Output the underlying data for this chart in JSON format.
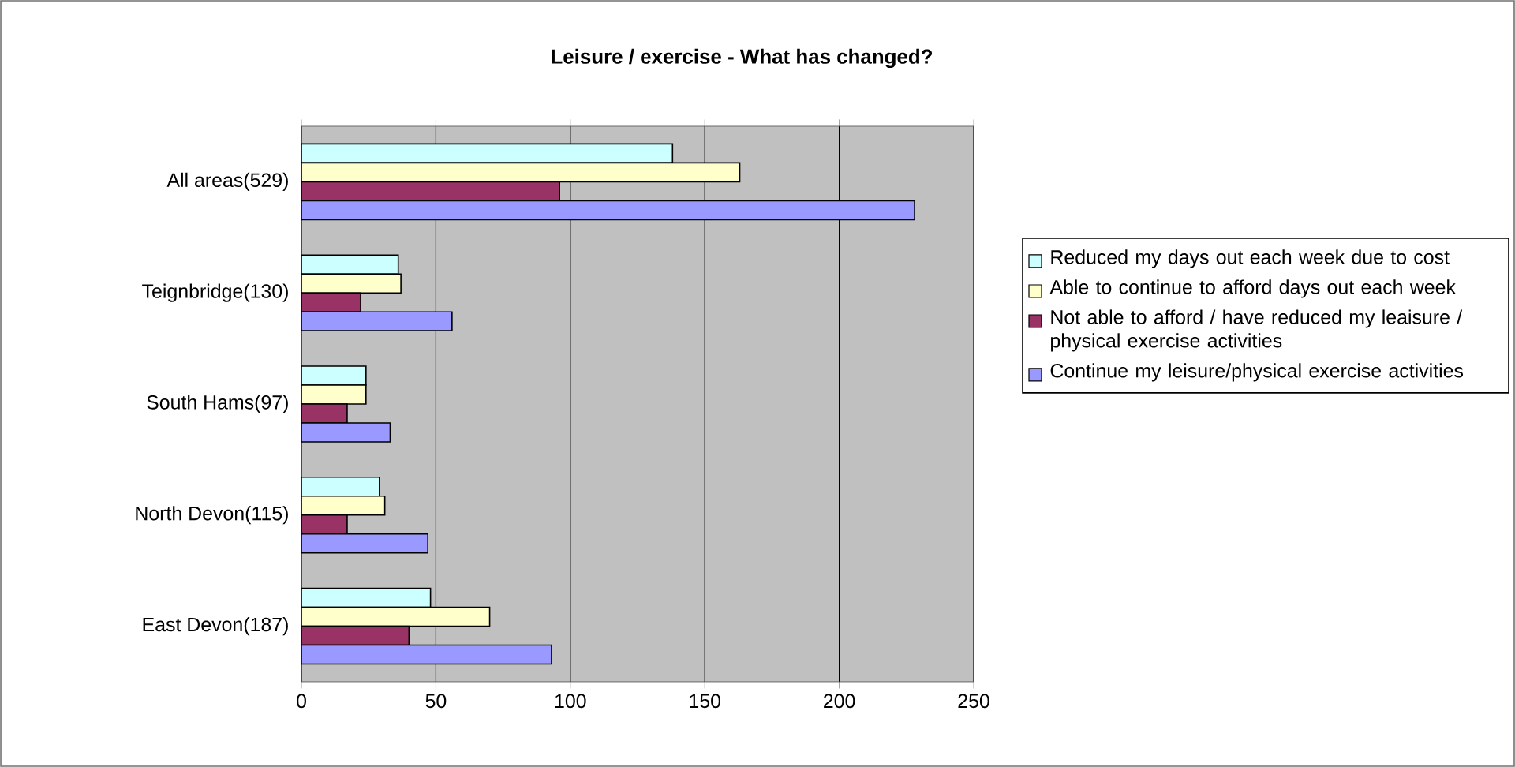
{
  "chart_data": {
    "type": "bar",
    "orientation": "horizontal",
    "title": "Leisure  / exercise - What has changed?",
    "categories": [
      "All areas(529)",
      "Teignbridge(130)",
      "South Hams(97)",
      "North Devon(115)",
      "East Devon(187)"
    ],
    "series": [
      {
        "name": "Reduced my days out each week due to cost",
        "color": "#ccffff",
        "values": [
          138,
          36,
          24,
          29,
          48
        ]
      },
      {
        "name": "Able to continue to afford days out each week",
        "color": "#ffffcc",
        "values": [
          163,
          37,
          24,
          31,
          70
        ]
      },
      {
        "name": "Not able to afford / have reduced my leaisure / physical exercise activities",
        "color": "#993366",
        "values": [
          96,
          22,
          17,
          17,
          40
        ]
      },
      {
        "name": "Continue my leisure/physical exercise activities",
        "color": "#9999ff",
        "values": [
          228,
          56,
          33,
          47,
          93
        ]
      }
    ],
    "xlim": [
      0,
      250
    ],
    "xticks": [
      0,
      50,
      100,
      150,
      200,
      250
    ],
    "grid": "x",
    "legend": "right"
  }
}
